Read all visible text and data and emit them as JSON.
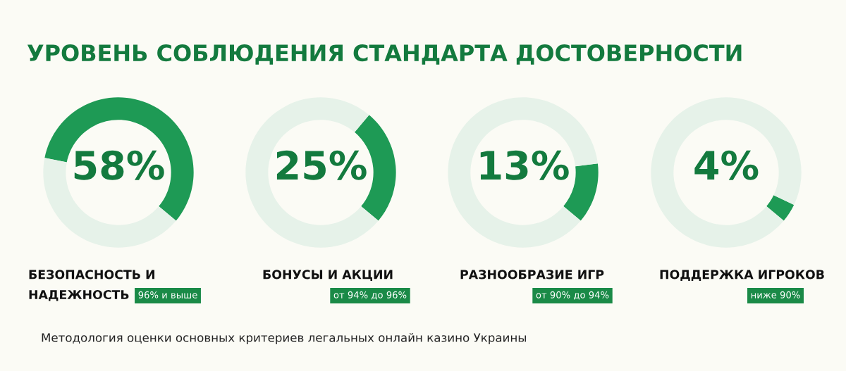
{
  "chart_data": [
    {
      "type": "donut",
      "title": "УРОВЕНЬ СОБЛЮДЕНИЯ СТАНДАРТА ДОСТОВЕРНОСТИ",
      "xlabel": "БЕЗОПАСНОСТЬ И\nНАДЕЖНОСТЬ",
      "subtitle": "96% и выше",
      "categories": [
        null,
        null
      ],
      "values": [
        58,
        42
      ],
      "colors": [
        "#1e9a55",
        "#e6f2e9"
      ],
      "annotations": [
        "58%",
        "Методология оценки основных критериев легальных онлайн казино Украины"
      ]
    },
    {
      "type": "donut",
      "xlabel": "БОНУСЫ И АКЦИИ",
      "subtitle": "от 94% до 96%",
      "categories": [
        null,
        null
      ],
      "values": [
        25,
        75
      ],
      "colors": [
        "#1e9a55",
        "#e6f2e9"
      ],
      "annotations": [
        "25%"
      ]
    },
    {
      "type": "donut",
      "xlabel": "РАЗНООБРАЗИЕ ИГР",
      "subtitle": "от 90% до 94%",
      "categories": [
        null,
        null
      ],
      "values": [
        13,
        87
      ],
      "colors": [
        "#1e9a55",
        "#e6f2e9"
      ],
      "annotations": [
        "13%"
      ]
    },
    {
      "type": "donut",
      "xlabel": "ПОДДЕРЖКА ИГРОКОВ",
      "subtitle": "ниже 90%",
      "categories": [
        null,
        null
      ],
      "values": [
        4,
        96
      ],
      "colors": [
        "#1e9a55",
        "#e6f2e9"
      ],
      "annotations": [
        "4%"
      ]
    }
  ]
}
